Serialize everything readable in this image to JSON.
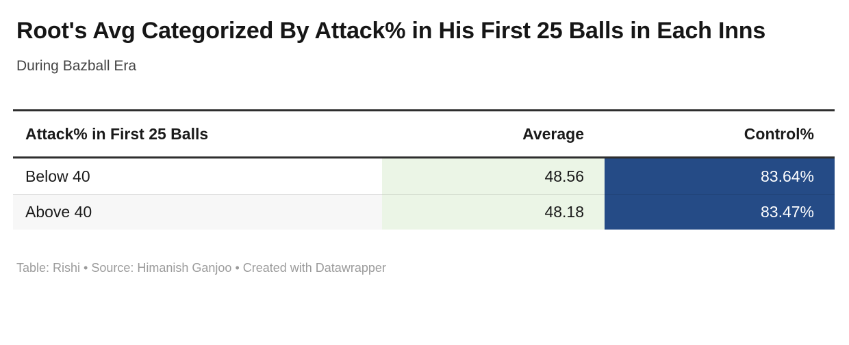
{
  "header": {
    "title": "Root's Avg Categorized By Attack% in His First 25 Balls in Each Inns",
    "subtitle": "During Bazball Era"
  },
  "table": {
    "columns": [
      {
        "label": "Attack% in First 25 Balls",
        "align": "left"
      },
      {
        "label": "Average",
        "align": "right"
      },
      {
        "label": "Control%",
        "align": "right"
      }
    ],
    "rows": [
      {
        "category": "Below 40",
        "average": "48.56",
        "control": "83.64%"
      },
      {
        "category": "Above 40",
        "average": "48.18",
        "control": "83.47%"
      }
    ]
  },
  "footer": {
    "credits": "Table: Rishi • Source: Himanish Ganjoo • Created with Datawrapper"
  },
  "colors": {
    "average_cell_bg": "#ebf5e6",
    "control_cell_bg": "#254b86",
    "control_cell_text": "#ffffff",
    "border_dark": "#2e2e2e",
    "alt_row_bg": "#f7f7f7",
    "footer_text": "#9b9b9b"
  },
  "chart_data": {
    "type": "table",
    "title": "Root's Avg Categorized By Attack% in His First 25 Balls in Each Inns",
    "subtitle": "During Bazball Era",
    "columns": [
      "Attack% in First 25 Balls",
      "Average",
      "Control%"
    ],
    "rows": [
      [
        "Below 40",
        48.56,
        "83.64%"
      ],
      [
        "Above 40",
        48.18,
        "83.47%"
      ]
    ],
    "notes": "Table: Rishi • Source: Himanish Ganjoo • Created with Datawrapper",
    "layout_hints": {
      "average_column_highlight": "#ebf5e6",
      "control_column_highlight": "#254b86",
      "header_rules": "thick dark top and bottom borders"
    }
  }
}
